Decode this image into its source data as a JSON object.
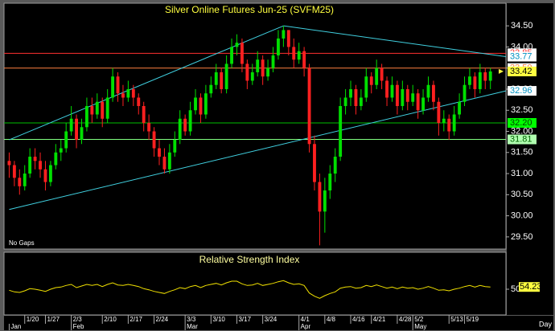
{
  "chart_data": {
    "type": "candlestick",
    "title": "Silver Online Futures Jun-25 (SVFM25)",
    "note": "No Gaps",
    "x_axis_label": "Day",
    "up_color": "#00e000",
    "down_color": "#ff2020",
    "ylim": [
      29.25,
      34.96
    ],
    "yticks": [
      {
        "value": 29.5,
        "label": "29.50"
      },
      {
        "value": 30,
        "label": "30.00"
      },
      {
        "value": 30.5,
        "label": "30.50"
      },
      {
        "value": 31,
        "label": "31.00"
      },
      {
        "value": 31.5,
        "label": "31.50"
      },
      {
        "value": 32,
        "label": "32.00"
      },
      {
        "value": 32.5,
        "label": "32.50"
      },
      {
        "value": 33,
        "label": "33.00"
      },
      {
        "value": 33.5,
        "label": "33.50"
      },
      {
        "value": 34,
        "label": "34.00"
      },
      {
        "value": 34.5,
        "label": "34.50"
      }
    ],
    "xlim": [
      -1,
      96
    ],
    "xticks": [
      {
        "value": 3,
        "label": "1/20"
      },
      {
        "value": 7,
        "label": "1/27"
      },
      {
        "value": 12,
        "label": "2/3"
      },
      {
        "value": 18,
        "label": "2/10"
      },
      {
        "value": 23,
        "label": "2/17"
      },
      {
        "value": 28,
        "label": "2/24"
      },
      {
        "value": 34,
        "label": "3/3"
      },
      {
        "value": 39,
        "label": "3/10"
      },
      {
        "value": 44,
        "label": "3/17"
      },
      {
        "value": 49,
        "label": "3/24"
      },
      {
        "value": 56,
        "label": "4/1"
      },
      {
        "value": 61,
        "label": "4/8"
      },
      {
        "value": 66,
        "label": "4/16"
      },
      {
        "value": 70,
        "label": "4/21"
      },
      {
        "value": 75,
        "label": "4/28"
      },
      {
        "value": 78,
        "label": "5/2"
      },
      {
        "value": 85,
        "label": "5/13"
      },
      {
        "value": 88,
        "label": "5/19"
      }
    ],
    "months": [
      {
        "value": 0,
        "label": "Jan"
      },
      {
        "value": 12,
        "label": "Feb"
      },
      {
        "value": 34,
        "label": "Mar"
      },
      {
        "value": 56,
        "label": "Apr"
      },
      {
        "value": 78,
        "label": "May"
      }
    ],
    "ohlc": [
      [
        31.3,
        31.5,
        30.9,
        31.2
      ],
      [
        31.2,
        31.3,
        30.7,
        30.9
      ],
      [
        30.9,
        31.1,
        30.5,
        30.7
      ],
      [
        30.7,
        31.2,
        30.6,
        31.0
      ],
      [
        31.0,
        31.6,
        30.9,
        31.4
      ],
      [
        31.4,
        31.6,
        31.1,
        31.3
      ],
      [
        31.3,
        31.5,
        30.9,
        31.1
      ],
      [
        31.1,
        31.3,
        30.6,
        30.8
      ],
      [
        30.8,
        31.3,
        30.7,
        31.2
      ],
      [
        31.2,
        31.7,
        31.1,
        31.5
      ],
      [
        31.5,
        31.8,
        31.3,
        31.6
      ],
      [
        31.6,
        32.2,
        31.5,
        32.0
      ],
      [
        32.0,
        32.6,
        31.9,
        32.3
      ],
      [
        32.3,
        32.4,
        31.6,
        31.8
      ],
      [
        31.8,
        32.3,
        31.7,
        32.1
      ],
      [
        32.1,
        32.8,
        32.0,
        32.6
      ],
      [
        32.6,
        32.8,
        32.2,
        32.4
      ],
      [
        32.4,
        32.9,
        32.3,
        32.7
      ],
      [
        32.7,
        32.8,
        32.1,
        32.3
      ],
      [
        32.3,
        33.0,
        32.2,
        32.8
      ],
      [
        32.8,
        33.5,
        32.7,
        33.3
      ],
      [
        33.3,
        33.4,
        32.7,
        32.9
      ],
      [
        32.9,
        33.1,
        32.6,
        32.8
      ],
      [
        32.8,
        33.2,
        32.7,
        33.0
      ],
      [
        33.0,
        33.1,
        32.6,
        32.8
      ],
      [
        32.8,
        32.9,
        32.4,
        32.6
      ],
      [
        32.6,
        32.7,
        32.0,
        32.2
      ],
      [
        32.2,
        32.4,
        31.8,
        32.0
      ],
      [
        32.0,
        32.1,
        31.4,
        31.6
      ],
      [
        31.6,
        31.8,
        31.2,
        31.4
      ],
      [
        31.4,
        31.6,
        31.0,
        31.1
      ],
      [
        31.1,
        31.7,
        31.0,
        31.5
      ],
      [
        31.5,
        32.0,
        31.4,
        31.8
      ],
      [
        31.8,
        32.5,
        31.7,
        32.3
      ],
      [
        32.3,
        32.4,
        31.9,
        32.0
      ],
      [
        32.0,
        32.7,
        31.9,
        32.5
      ],
      [
        32.5,
        33.0,
        32.4,
        32.8
      ],
      [
        32.8,
        32.9,
        32.2,
        32.4
      ],
      [
        32.4,
        33.1,
        32.3,
        32.9
      ],
      [
        32.9,
        33.3,
        32.8,
        33.1
      ],
      [
        33.1,
        33.6,
        33.0,
        33.4
      ],
      [
        33.4,
        33.5,
        32.9,
        33.0
      ],
      [
        33.0,
        33.8,
        32.9,
        33.6
      ],
      [
        33.6,
        34.2,
        33.5,
        34.0
      ],
      [
        34.0,
        34.3,
        33.8,
        34.1
      ],
      [
        34.1,
        34.2,
        33.4,
        33.6
      ],
      [
        33.6,
        33.7,
        33.0,
        33.2
      ],
      [
        33.2,
        33.6,
        33.1,
        33.4
      ],
      [
        33.4,
        33.9,
        33.3,
        33.7
      ],
      [
        33.7,
        33.8,
        33.1,
        33.3
      ],
      [
        33.3,
        33.7,
        33.2,
        33.5
      ],
      [
        33.5,
        34.0,
        33.4,
        33.8
      ],
      [
        33.8,
        34.4,
        33.7,
        34.2
      ],
      [
        34.2,
        34.5,
        34.0,
        34.4
      ],
      [
        34.4,
        34.4,
        33.8,
        34.0
      ],
      [
        34.0,
        34.2,
        33.5,
        33.7
      ],
      [
        33.7,
        34.1,
        33.6,
        33.9
      ],
      [
        33.9,
        34.0,
        33.3,
        33.5
      ],
      [
        33.5,
        33.6,
        31.5,
        31.7
      ],
      [
        31.7,
        31.9,
        30.6,
        30.8
      ],
      [
        30.8,
        31.0,
        29.3,
        30.1
      ],
      [
        30.1,
        30.9,
        29.6,
        30.6
      ],
      [
        30.6,
        31.2,
        30.4,
        31.0
      ],
      [
        31.0,
        31.6,
        30.8,
        31.4
      ],
      [
        31.4,
        32.8,
        31.3,
        32.6
      ],
      [
        32.6,
        33.0,
        32.4,
        32.8
      ],
      [
        32.8,
        33.2,
        32.6,
        33.0
      ],
      [
        33.0,
        33.1,
        32.4,
        32.6
      ],
      [
        32.6,
        33.0,
        32.5,
        32.8
      ],
      [
        32.8,
        33.5,
        32.7,
        33.3
      ],
      [
        33.3,
        33.4,
        32.9,
        33.1
      ],
      [
        33.1,
        33.7,
        33.0,
        33.5
      ],
      [
        33.5,
        33.6,
        33.0,
        33.2
      ],
      [
        33.2,
        33.3,
        32.6,
        32.8
      ],
      [
        32.8,
        33.3,
        32.7,
        33.1
      ],
      [
        33.1,
        33.2,
        32.4,
        32.6
      ],
      [
        32.6,
        33.2,
        32.5,
        33.0
      ],
      [
        33.0,
        33.1,
        32.5,
        32.7
      ],
      [
        32.7,
        33.1,
        32.6,
        32.9
      ],
      [
        32.9,
        33.0,
        32.3,
        32.5
      ],
      [
        32.5,
        33.0,
        32.4,
        32.8
      ],
      [
        32.8,
        33.3,
        32.7,
        33.1
      ],
      [
        33.1,
        33.2,
        32.5,
        32.7
      ],
      [
        32.7,
        32.8,
        31.9,
        32.2
      ],
      [
        32.2,
        32.5,
        32.0,
        32.3
      ],
      [
        32.3,
        32.4,
        31.8,
        32.0
      ],
      [
        32.0,
        32.6,
        31.9,
        32.4
      ],
      [
        32.4,
        32.9,
        32.3,
        32.7
      ],
      [
        32.7,
        33.3,
        32.6,
        33.1
      ],
      [
        33.1,
        33.5,
        33.0,
        33.3
      ],
      [
        33.3,
        33.4,
        32.8,
        33.0
      ],
      [
        33.0,
        33.6,
        32.9,
        33.4
      ],
      [
        33.4,
        33.5,
        33.0,
        33.2
      ],
      [
        33.2,
        33.5,
        33.0,
        33.42
      ]
    ],
    "levels": [
      {
        "value": 33.85,
        "label": "33.85",
        "color": "#ff3030",
        "box": "#ffffff"
      },
      {
        "value": 33.5,
        "label": "33.50",
        "color": "#ff8040",
        "box": "#ffffff"
      },
      {
        "value": 32.2,
        "label": "32.20",
        "color": "#00c000",
        "box": "#00ff00"
      },
      {
        "value": 31.81,
        "label": "31.81",
        "color": "#80ff80",
        "box": "#b0ffb0"
      }
    ],
    "trendlines": [
      {
        "points": [
          [
            0,
            31.8
          ],
          [
            53,
            34.5
          ]
        ],
        "label": null
      },
      {
        "points": [
          [
            53,
            34.5
          ],
          [
            96,
            33.77
          ]
        ],
        "label": "33.77"
      },
      {
        "points": [
          [
            0,
            30.15
          ],
          [
            96,
            32.96
          ]
        ],
        "label": "32.96"
      }
    ],
    "trend_color": "#40d0e0",
    "last_price": {
      "value": 33.42,
      "label": "33.42"
    },
    "rsi": {
      "title": "Relative Strength Index",
      "color": "#f0e000",
      "ylim": [
        5,
        95
      ],
      "yticks": [
        50
      ],
      "values": [
        48,
        45,
        44,
        47,
        51,
        50,
        48,
        46,
        50,
        53,
        54,
        57,
        59,
        53,
        56,
        59,
        57,
        59,
        55,
        59,
        62,
        58,
        57,
        59,
        57,
        55,
        51,
        49,
        46,
        44,
        42,
        46,
        49,
        53,
        51,
        55,
        57,
        53,
        57,
        59,
        61,
        58,
        62,
        65,
        65,
        60,
        57,
        58,
        61,
        57,
        59,
        61,
        64,
        66,
        62,
        59,
        60,
        57,
        43,
        37,
        33,
        38,
        42,
        45,
        52,
        54,
        55,
        52,
        53,
        57,
        55,
        58,
        55,
        52,
        54,
        51,
        54,
        52,
        53,
        50,
        52,
        55,
        52,
        48,
        49,
        47,
        50,
        52,
        55,
        57,
        54,
        57,
        55,
        54.23
      ],
      "last_label": "54.23"
    }
  }
}
